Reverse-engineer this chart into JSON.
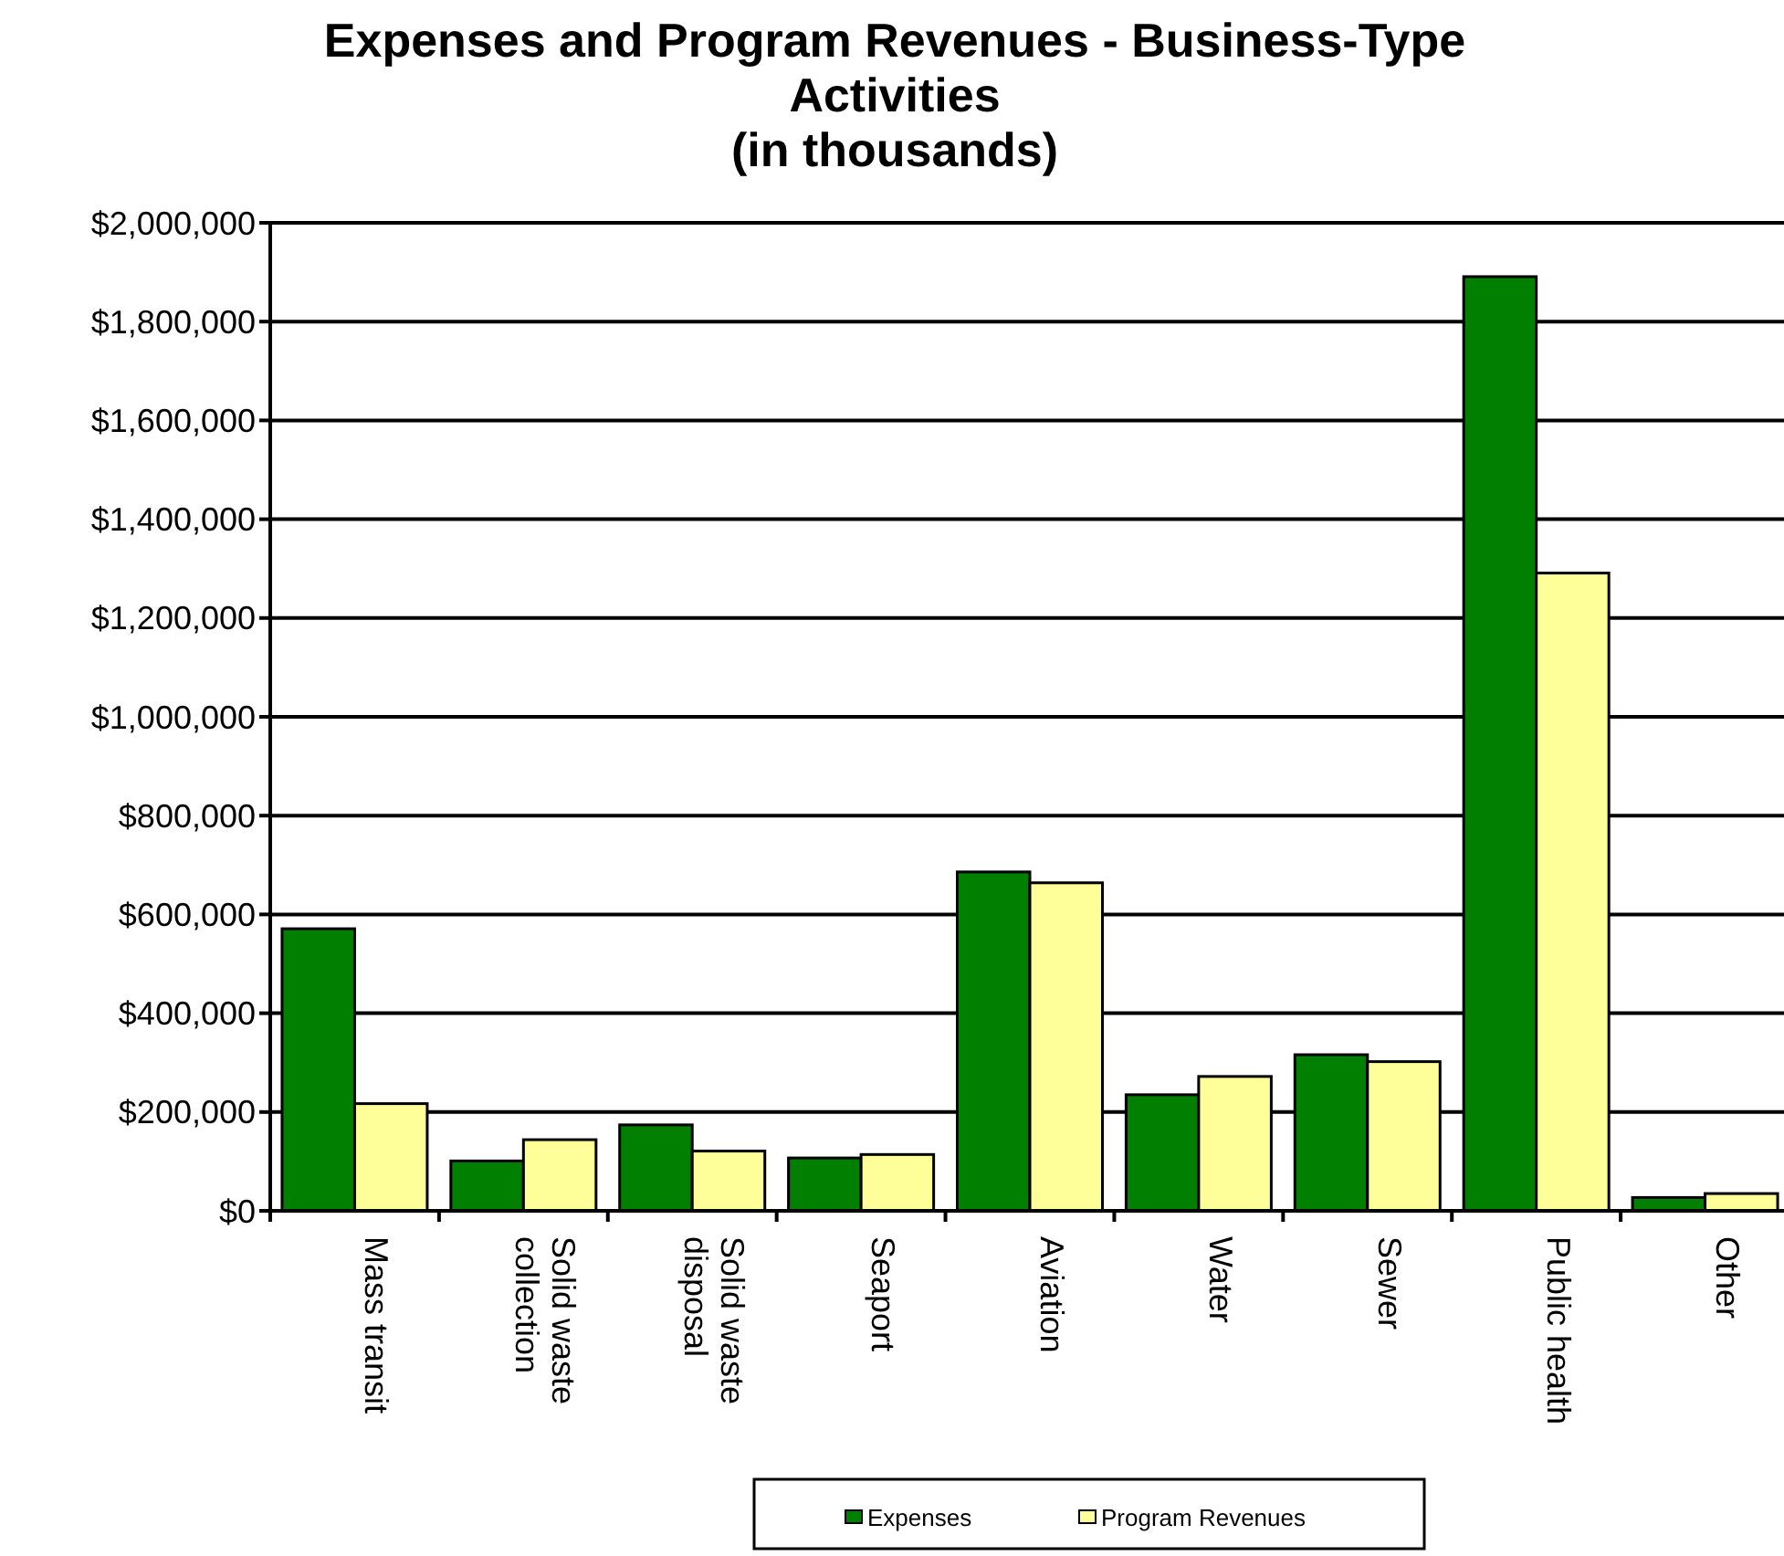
{
  "chart_data": {
    "type": "bar",
    "title": "Expenses and Program Revenues - Business-Type Activities\n(in thousands)",
    "categories": [
      "Mass transit",
      "Solid waste collection",
      "Solid waste disposal",
      "Seaport",
      "Aviation",
      "Water",
      "Sewer",
      "Public health",
      "Other"
    ],
    "series": [
      {
        "name": "Expenses",
        "color": "#007f00",
        "values": [
          571000,
          101000,
          174000,
          107000,
          686000,
          235000,
          316000,
          1891000,
          27000
        ]
      },
      {
        "name": "Program Revenues",
        "color": "#ffff99",
        "values": [
          217000,
          144000,
          121000,
          114000,
          664000,
          272000,
          302000,
          1291000,
          35000
        ]
      }
    ],
    "ylim": [
      0,
      2000000
    ],
    "yticks": [
      {
        "value": 0,
        "label": "$0"
      },
      {
        "value": 200000,
        "label": "$200,000"
      },
      {
        "value": 400000,
        "label": "$400,000"
      },
      {
        "value": 600000,
        "label": "$600,000"
      },
      {
        "value": 800000,
        "label": "$800,000"
      },
      {
        "value": 1000000,
        "label": "$1,000,000"
      },
      {
        "value": 1200000,
        "label": "$1,200,000"
      },
      {
        "value": 1400000,
        "label": "$1,400,000"
      },
      {
        "value": 1600000,
        "label": "$1,600,000"
      },
      {
        "value": 1800000,
        "label": "$1,800,000"
      },
      {
        "value": 2000000,
        "label": "$2,000,000"
      }
    ],
    "grid": "y",
    "legend": "bottom"
  }
}
